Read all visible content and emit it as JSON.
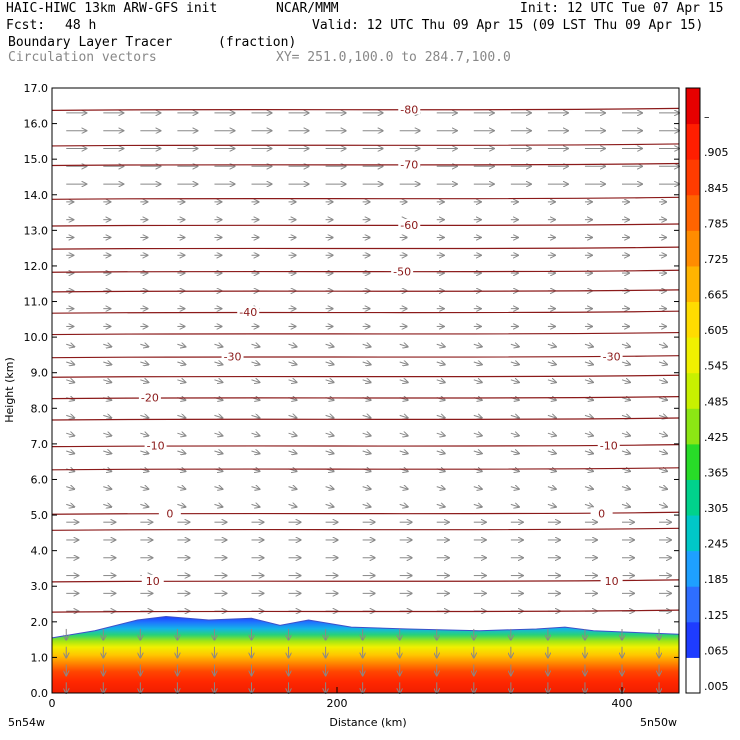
{
  "header": {
    "model": "HAIC-HIWC 13km ARW-GFS init",
    "org": "NCAR/MMM",
    "init": "Init: 12 UTC Tue 07 Apr 15",
    "fcst_label": "Fcst:",
    "fcst_value": "48 h",
    "valid": "Valid: 12 UTC Thu 09 Apr 15 (09 LST Thu 09 Apr 15)",
    "field_name": "Boundary Layer Tracer",
    "field_units": "(fraction)",
    "overlay": "Circulation vectors",
    "xy": "XY= 251.0,100.0 to 284.7,100.0"
  },
  "chart_data": {
    "type": "heatmap",
    "xlabel": "Distance (km)",
    "ylabel": "Height (km)",
    "xlim": [
      0,
      440
    ],
    "ylim": [
      0,
      17
    ],
    "x_ticks": [
      "0",
      "200",
      "400"
    ],
    "x_tick_values": [
      0,
      200,
      400
    ],
    "x_end_labels": {
      "left": "5n54w",
      "right": "5n50w"
    },
    "y_ticks": [
      "0.0",
      "1.0",
      "2.0",
      "3.0",
      "4.0",
      "5.0",
      "6.0",
      "7.0",
      "8.0",
      "9.0",
      "10.0",
      "11.0",
      "12.0",
      "13.0",
      "14.0",
      "15.0",
      "16.0",
      "17.0"
    ],
    "colorbar_labels": [
      ".005",
      ".065",
      ".125",
      ".185",
      ".245",
      ".305",
      ".365",
      ".425",
      ".485",
      ".545",
      ".605",
      ".665",
      ".725",
      ".785",
      ".845",
      ".905",
      "–"
    ],
    "colorbar_colors": [
      "#ffffff",
      "#1e3cff",
      "#2e6eff",
      "#1ea0ff",
      "#00c8c8",
      "#00d28c",
      "#28dc28",
      "#8ce614",
      "#c8f000",
      "#f0f000",
      "#ffdc00",
      "#ffb400",
      "#ff8c00",
      "#ff6400",
      "#ff3c00",
      "#ff1e00",
      "#e60000"
    ],
    "temperature_contours": [
      {
        "label": "-80",
        "height": 16.4,
        "label_x": 250
      },
      {
        "label": "",
        "height": 15.4,
        "label_x": null
      },
      {
        "label": "-70",
        "height": 14.85,
        "label_x": 250
      },
      {
        "label": "",
        "height": 13.9,
        "label_x": null
      },
      {
        "label": "-60",
        "height": 13.15,
        "label_x": 250
      },
      {
        "label": "",
        "height": 12.5,
        "label_x": null
      },
      {
        "label": "-50",
        "height": 11.85,
        "label_x": 245
      },
      {
        "label": "",
        "height": 11.3,
        "label_x": null
      },
      {
        "label": "-40",
        "height": 10.7,
        "label_x": 137
      },
      {
        "label": "",
        "height": 10.1,
        "label_x": null
      },
      {
        "label": "-30",
        "height": 9.45,
        "label_x": 126
      },
      {
        "label": "-30",
        "height": 9.45,
        "label_x": 392
      },
      {
        "label": "",
        "height": 8.9,
        "label_x": null
      },
      {
        "label": "-20",
        "height": 8.3,
        "label_x": 68
      },
      {
        "label": "",
        "height": 7.7,
        "label_x": null
      },
      {
        "label": "-10",
        "height": 6.95,
        "label_x": 72
      },
      {
        "label": "-10",
        "height": 6.95,
        "label_x": 390
      },
      {
        "label": "",
        "height": 6.3,
        "label_x": null
      },
      {
        "label": "0",
        "height": 5.05,
        "label_x": 82
      },
      {
        "label": "0",
        "height": 5.05,
        "label_x": 385
      },
      {
        "label": "",
        "height": 4.6,
        "label_x": null
      },
      {
        "label": "10",
        "height": 3.15,
        "label_x": 70
      },
      {
        "label": "10",
        "height": 3.15,
        "label_x": 392
      },
      {
        "label": "",
        "height": 2.3,
        "label_x": null
      }
    ],
    "boundary_layer_top_km": [
      [
        0,
        1.55
      ],
      [
        30,
        1.75
      ],
      [
        60,
        2.05
      ],
      [
        80,
        2.15
      ],
      [
        110,
        2.05
      ],
      [
        140,
        2.1
      ],
      [
        160,
        1.9
      ],
      [
        180,
        2.05
      ],
      [
        210,
        1.85
      ],
      [
        250,
        1.8
      ],
      [
        300,
        1.75
      ],
      [
        340,
        1.8
      ],
      [
        360,
        1.85
      ],
      [
        380,
        1.75
      ],
      [
        440,
        1.65
      ]
    ]
  }
}
